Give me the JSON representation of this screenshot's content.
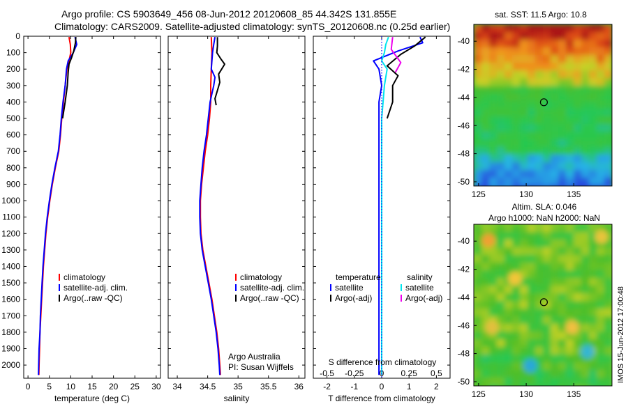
{
  "header": {
    "line1": "Argo profile: CS 5903649_456 08-Jun-2012 20120608_85 44.342S 131.855E",
    "line2": "Climatology: CARS2009. Satellite-adjusted climatology: synTS_20120608.nc (0.25d earlier)"
  },
  "side_label": "IMOS 15-Jun-2012 17:00:48",
  "colors": {
    "climatology": "#ff0000",
    "satellite": "#0000ff",
    "argo": "#000000",
    "sal_satellite": "#00e5ee",
    "sal_argo": "#ee00ee",
    "dotted": "#0000ff"
  },
  "chart_data": [
    {
      "type": "line",
      "panel": "temperature",
      "xlabel": "temperature (deg C)",
      "ylabel": "",
      "xlim": [
        -1,
        31
      ],
      "ylim": [
        2080,
        0
      ],
      "xticks": [
        0,
        5,
        10,
        15,
        20,
        25,
        30
      ],
      "yticks": [
        0,
        100,
        200,
        300,
        400,
        500,
        600,
        700,
        800,
        900,
        1000,
        1100,
        1200,
        1300,
        1400,
        1500,
        1600,
        1700,
        1800,
        1900,
        2000
      ],
      "legend": [
        "climatology",
        "satellite-adj. clim.",
        "Argo(..raw -QC)"
      ],
      "series": [
        {
          "name": "climatology",
          "color": "#ff0000",
          "points": [
            [
              9.6,
              5
            ],
            [
              9.9,
              50
            ],
            [
              10.0,
              100
            ],
            [
              9.6,
              150
            ],
            [
              9.1,
              200
            ],
            [
              8.7,
              300
            ],
            [
              8.3,
              400
            ],
            [
              7.9,
              500
            ],
            [
              7.6,
              600
            ],
            [
              7.2,
              700
            ],
            [
              6.4,
              800
            ],
            [
              5.7,
              900
            ],
            [
              5.1,
              1000
            ],
            [
              4.6,
              1100
            ],
            [
              4.2,
              1200
            ],
            [
              3.9,
              1300
            ],
            [
              3.6,
              1400
            ],
            [
              3.4,
              1500
            ],
            [
              3.2,
              1600
            ],
            [
              3.0,
              1700
            ],
            [
              2.8,
              1800
            ],
            [
              2.7,
              1900
            ],
            [
              2.6,
              2000
            ],
            [
              2.55,
              2060
            ]
          ]
        },
        {
          "name": "satellite-adj. clim.",
          "color": "#0000ff",
          "points": [
            [
              11.0,
              5
            ],
            [
              11.4,
              50
            ],
            [
              10.6,
              100
            ],
            [
              9.4,
              150
            ],
            [
              9.0,
              200
            ],
            [
              8.7,
              300
            ],
            [
              8.2,
              400
            ],
            [
              7.8,
              500
            ],
            [
              7.5,
              600
            ],
            [
              7.1,
              700
            ],
            [
              6.3,
              800
            ],
            [
              5.6,
              900
            ],
            [
              5.0,
              1000
            ],
            [
              4.5,
              1100
            ],
            [
              4.1,
              1200
            ],
            [
              3.8,
              1300
            ],
            [
              3.5,
              1400
            ],
            [
              3.3,
              1500
            ],
            [
              3.1,
              1600
            ],
            [
              2.9,
              1700
            ],
            [
              2.8,
              1800
            ],
            [
              2.6,
              1900
            ],
            [
              2.5,
              2000
            ],
            [
              2.45,
              2060
            ]
          ]
        },
        {
          "name": "Argo(..raw -QC)",
          "color": "#000000",
          "points": [
            [
              11.2,
              5
            ],
            [
              11.1,
              40
            ],
            [
              10.7,
              90
            ],
            [
              10.2,
              130
            ],
            [
              9.6,
              170
            ],
            [
              9.4,
              220
            ],
            [
              9.2,
              300
            ],
            [
              8.7,
              400
            ],
            [
              8.1,
              500
            ]
          ]
        }
      ]
    },
    {
      "type": "line",
      "panel": "salinity",
      "xlabel": "salinity",
      "ylabel": "",
      "xlim": [
        33.85,
        36.1
      ],
      "ylim": [
        2080,
        0
      ],
      "xticks": [
        34,
        34.5,
        35,
        35.5,
        36
      ],
      "legend": [
        "climatology",
        "satellite-adj. clim.",
        "Argo(..raw -QC)"
      ],
      "annotations": [
        "Argo Australia",
        "PI: Susan Wijffels"
      ],
      "series": [
        {
          "name": "climatology",
          "color": "#ff0000",
          "points": [
            [
              34.56,
              5
            ],
            [
              34.57,
              100
            ],
            [
              34.56,
              200
            ],
            [
              34.55,
              300
            ],
            [
              34.55,
              400
            ],
            [
              34.53,
              500
            ],
            [
              34.5,
              600
            ],
            [
              34.46,
              700
            ],
            [
              34.43,
              800
            ],
            [
              34.4,
              900
            ],
            [
              34.38,
              1000
            ],
            [
              34.38,
              1100
            ],
            [
              34.39,
              1200
            ],
            [
              34.42,
              1300
            ],
            [
              34.47,
              1400
            ],
            [
              34.52,
              1500
            ],
            [
              34.57,
              1600
            ],
            [
              34.61,
              1700
            ],
            [
              34.65,
              1800
            ],
            [
              34.68,
              1900
            ],
            [
              34.7,
              2000
            ],
            [
              34.71,
              2060
            ]
          ]
        },
        {
          "name": "satellite-adj. clim.",
          "color": "#0000ff",
          "points": [
            [
              34.62,
              5
            ],
            [
              34.6,
              50
            ],
            [
              34.58,
              100
            ],
            [
              34.56,
              200
            ],
            [
              34.62,
              250
            ],
            [
              34.6,
              300
            ],
            [
              34.54,
              400
            ],
            [
              34.51,
              500
            ],
            [
              34.48,
              600
            ],
            [
              34.44,
              700
            ],
            [
              34.41,
              800
            ],
            [
              34.39,
              900
            ],
            [
              34.37,
              1000
            ],
            [
              34.37,
              1100
            ],
            [
              34.38,
              1200
            ],
            [
              34.41,
              1300
            ],
            [
              34.46,
              1400
            ],
            [
              34.51,
              1500
            ],
            [
              34.56,
              1600
            ],
            [
              34.6,
              1700
            ],
            [
              34.64,
              1800
            ],
            [
              34.67,
              1900
            ],
            [
              34.69,
              2000
            ],
            [
              34.7,
              2060
            ]
          ]
        },
        {
          "name": "Argo(..raw -QC)",
          "color": "#000000",
          "points": [
            [
              34.66,
              5
            ],
            [
              34.66,
              60
            ],
            [
              34.65,
              100
            ],
            [
              34.72,
              140
            ],
            [
              34.78,
              170
            ],
            [
              34.73,
              200
            ],
            [
              34.68,
              230
            ],
            [
              34.7,
              280
            ],
            [
              34.66,
              330
            ],
            [
              34.62,
              380
            ],
            [
              34.64,
              420
            ]
          ]
        }
      ]
    },
    {
      "type": "line",
      "panel": "difference",
      "xlabel": "T difference from climatology",
      "xlabel_top": "S difference from climatology",
      "ylabel": "",
      "xlim": [
        -2.5,
        2.5
      ],
      "ylim": [
        2080,
        0
      ],
      "xticks_bottom": [
        -2,
        -1,
        0,
        1,
        2
      ],
      "xticks_top": [
        "-0.5",
        "-0.25",
        "0",
        "0.25",
        "0.5"
      ],
      "legend_temperature": [
        "temperature",
        "satellite",
        "Argo(-adj)"
      ],
      "legend_salinity": [
        "salinity",
        "satellite",
        "Argo(-adj)"
      ],
      "series": [
        {
          "name": "temperature satellite",
          "color": "#0000ff",
          "points": [
            [
              1.4,
              5
            ],
            [
              1.5,
              40
            ],
            [
              0.6,
              90
            ],
            [
              -0.3,
              150
            ],
            [
              -0.1,
              200
            ],
            [
              0,
              300
            ],
            [
              -0.1,
              400
            ],
            [
              -0.1,
              500
            ],
            [
              -0.1,
              600
            ],
            [
              -0.1,
              700
            ],
            [
              -0.1,
              800
            ],
            [
              -0.1,
              900
            ],
            [
              -0.1,
              1000
            ],
            [
              -0.1,
              1200
            ],
            [
              -0.1,
              1400
            ],
            [
              -0.1,
              1600
            ],
            [
              -0.1,
              1800
            ],
            [
              -0.1,
              2000
            ],
            [
              -0.1,
              2060
            ]
          ]
        },
        {
          "name": "temperature Argo(-adj)",
          "color": "#000000",
          "points": [
            [
              1.6,
              5
            ],
            [
              1.2,
              60
            ],
            [
              0.7,
              110
            ],
            [
              0.2,
              180
            ],
            [
              0.6,
              240
            ],
            [
              0.4,
              300
            ],
            [
              0.4,
              400
            ],
            [
              0.2,
              500
            ]
          ]
        },
        {
          "name": "salinity satellite",
          "color": "#00e5ee",
          "points": [
            [
              0.25,
              5
            ],
            [
              0.15,
              50
            ],
            [
              0.1,
              100
            ],
            [
              0,
              150
            ],
            [
              0.2,
              200
            ],
            [
              0.1,
              300
            ],
            [
              0.05,
              400
            ],
            [
              0,
              500
            ],
            [
              0,
              700
            ],
            [
              0,
              900
            ],
            [
              0,
              1100
            ],
            [
              0,
              1300
            ],
            [
              0,
              1500
            ],
            [
              0,
              1700
            ],
            [
              0,
              1900
            ],
            [
              0,
              2060
            ]
          ]
        },
        {
          "name": "salinity Argo(-adj)",
          "color": "#ee00ee",
          "points": [
            [
              0.4,
              5
            ],
            [
              0.35,
              80
            ],
            [
              0.7,
              160
            ],
            [
              0.5,
              220
            ]
          ]
        }
      ]
    },
    {
      "type": "heatmap",
      "panel": "sst_map",
      "title": "sat. SST: 11.5 Argo: 10.8",
      "xlim": [
        124.5,
        139
      ],
      "ylim": [
        -50.3,
        -38.8
      ],
      "xticks": [
        125,
        130,
        135
      ],
      "yticks": [
        -40,
        -42,
        -44,
        -46,
        -48,
        -50
      ],
      "marker": {
        "lon": 131.855,
        "lat": -44.342
      }
    },
    {
      "type": "heatmap",
      "panel": "sla_map",
      "title": "Altim. SLA: 0.046",
      "subtitle": "Argo h1000: NaN h2000: NaN",
      "xlim": [
        124.5,
        139
      ],
      "ylim": [
        -50.3,
        -38.8
      ],
      "xticks": [
        125,
        130,
        135
      ],
      "yticks": [
        -40,
        -42,
        -44,
        -46,
        -48,
        -50
      ],
      "marker": {
        "lon": 131.855,
        "lat": -44.342
      }
    }
  ]
}
